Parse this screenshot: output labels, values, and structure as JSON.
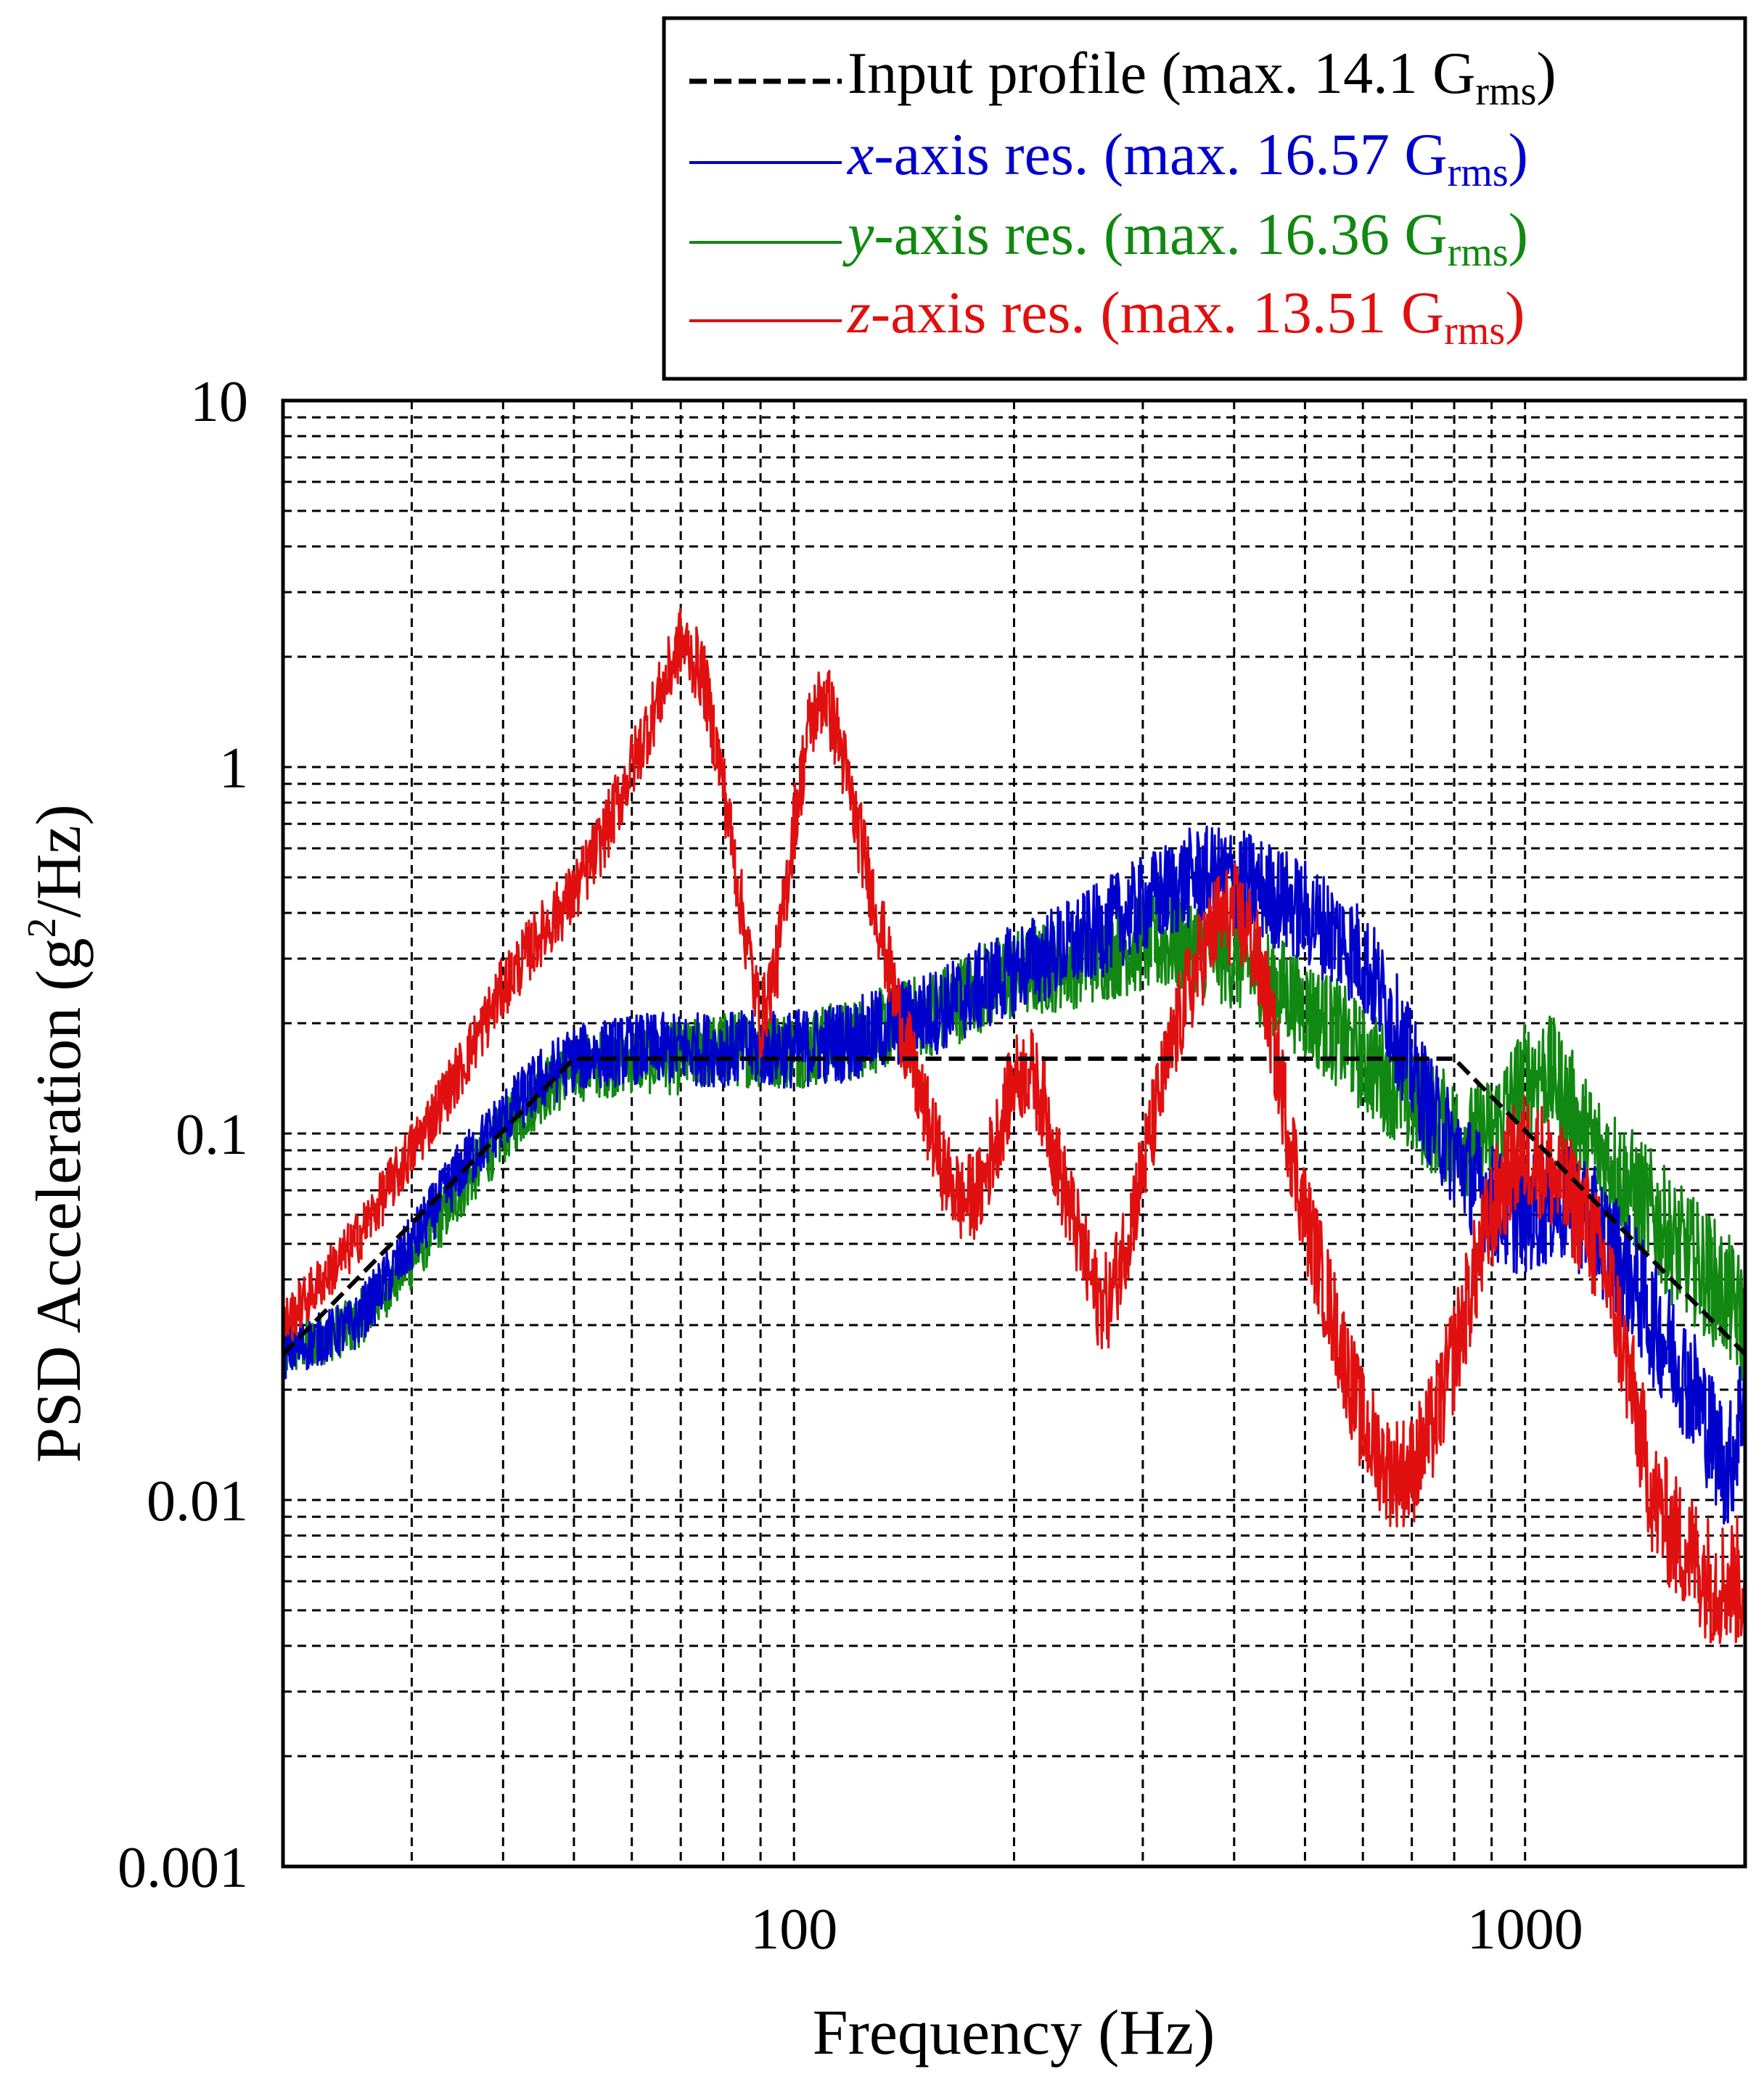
{
  "chart_data": {
    "type": "line",
    "title": "",
    "xlabel": "Frequency (Hz)",
    "ylabel_main": "PSD Acceleration (g",
    "ylabel_sup": "2",
    "ylabel_tail": "/Hz)",
    "xscale": "log",
    "yscale": "log",
    "xlim": [
      20,
      2000
    ],
    "ylim": [
      0.001,
      10
    ],
    "grid": true,
    "legend_position": "top-right",
    "x_ticks": [
      {
        "value": 100,
        "label": "100"
      },
      {
        "value": 1000,
        "label": "1000"
      }
    ],
    "y_ticks": [
      {
        "value": 10,
        "label": "10"
      },
      {
        "value": 1,
        "label": "1"
      },
      {
        "value": 0.1,
        "label": "0.1"
      },
      {
        "value": 0.01,
        "label": "0.01"
      },
      {
        "value": 0.001,
        "label": "0.001"
      }
    ],
    "series": [
      {
        "key": "input",
        "name": "Input profile (max. 14.1 G",
        "name_prefix": "",
        "name_suffix": "rms",
        "color": "#000000",
        "style": "dashed",
        "x": [
          20,
          50,
          150,
          800,
          2000
        ],
        "y": [
          0.025,
          0.16,
          0.16,
          0.16,
          0.025
        ]
      },
      {
        "key": "x",
        "name": "-axis res. (max. 16.57 G",
        "name_prefix": "x",
        "name_suffix": "rms",
        "color": "#0000cc",
        "style": "noisy",
        "x": [
          20,
          25,
          30,
          35,
          40,
          45,
          50,
          60,
          70,
          80,
          90,
          100,
          120,
          140,
          160,
          180,
          200,
          250,
          300,
          350,
          400,
          450,
          500,
          550,
          600,
          650,
          700,
          750,
          800,
          850,
          900,
          950,
          1000,
          1100,
          1200,
          1300,
          1400,
          1500,
          1600,
          1700,
          1800,
          1900,
          2000
        ],
        "y": [
          0.025,
          0.03,
          0.05,
          0.08,
          0.11,
          0.14,
          0.16,
          0.17,
          0.17,
          0.17,
          0.17,
          0.17,
          0.18,
          0.2,
          0.22,
          0.25,
          0.28,
          0.34,
          0.42,
          0.5,
          0.5,
          0.45,
          0.4,
          0.35,
          0.3,
          0.22,
          0.15,
          0.11,
          0.09,
          0.075,
          0.065,
          0.06,
          0.06,
          0.065,
          0.06,
          0.05,
          0.04,
          0.03,
          0.025,
          0.02,
          0.015,
          0.012,
          0.02
        ]
      },
      {
        "key": "y",
        "name": "-axis res. (max. 16.36 G",
        "name_prefix": "y",
        "name_suffix": "rms",
        "color": "#118811",
        "style": "noisy",
        "x": [
          20,
          25,
          30,
          35,
          40,
          45,
          50,
          60,
          70,
          80,
          90,
          100,
          120,
          140,
          160,
          180,
          200,
          250,
          300,
          350,
          400,
          450,
          500,
          550,
          600,
          650,
          700,
          750,
          800,
          850,
          900,
          950,
          1000,
          1050,
          1100,
          1150,
          1200,
          1300,
          1400,
          1500,
          1600,
          1700,
          1800,
          1900,
          2000
        ],
        "y": [
          0.025,
          0.03,
          0.045,
          0.07,
          0.1,
          0.13,
          0.15,
          0.16,
          0.16,
          0.17,
          0.17,
          0.17,
          0.18,
          0.2,
          0.22,
          0.25,
          0.27,
          0.3,
          0.33,
          0.33,
          0.3,
          0.26,
          0.22,
          0.19,
          0.16,
          0.14,
          0.12,
          0.11,
          0.1,
          0.095,
          0.1,
          0.12,
          0.14,
          0.15,
          0.14,
          0.12,
          0.1,
          0.085,
          0.07,
          0.06,
          0.05,
          0.045,
          0.04,
          0.035,
          0.03
        ]
      },
      {
        "key": "z",
        "name": "-axis res. (max. 13.51 G",
        "name_prefix": "z",
        "name_suffix": "rms",
        "color": "#e01010",
        "style": "noisy",
        "x": [
          20,
          25,
          30,
          35,
          40,
          45,
          50,
          55,
          60,
          65,
          70,
          75,
          80,
          85,
          90,
          95,
          100,
          105,
          110,
          115,
          120,
          130,
          140,
          150,
          160,
          170,
          180,
          190,
          200,
          210,
          220,
          230,
          240,
          250,
          260,
          270,
          280,
          300,
          320,
          340,
          360,
          380,
          400,
          420,
          440,
          460,
          480,
          500,
          550,
          600,
          650,
          700,
          750,
          800,
          850,
          900,
          950,
          1000,
          1050,
          1100,
          1200,
          1300,
          1400,
          1500,
          1600,
          1700,
          1800,
          1900,
          2000
        ],
        "y": [
          0.03,
          0.05,
          0.09,
          0.15,
          0.25,
          0.35,
          0.45,
          0.65,
          1.0,
          1.5,
          2.2,
          1.8,
          0.9,
          0.4,
          0.2,
          0.3,
          0.7,
          1.3,
          1.6,
          1.2,
          0.8,
          0.4,
          0.2,
          0.12,
          0.08,
          0.065,
          0.07,
          0.1,
          0.14,
          0.15,
          0.12,
          0.08,
          0.06,
          0.045,
          0.035,
          0.035,
          0.045,
          0.08,
          0.14,
          0.22,
          0.3,
          0.38,
          0.4,
          0.35,
          0.25,
          0.15,
          0.09,
          0.06,
          0.03,
          0.016,
          0.012,
          0.012,
          0.016,
          0.025,
          0.04,
          0.06,
          0.08,
          0.09,
          0.085,
          0.075,
          0.06,
          0.04,
          0.02,
          0.01,
          0.008,
          0.007,
          0.006,
          0.006,
          0.006
        ]
      }
    ]
  }
}
